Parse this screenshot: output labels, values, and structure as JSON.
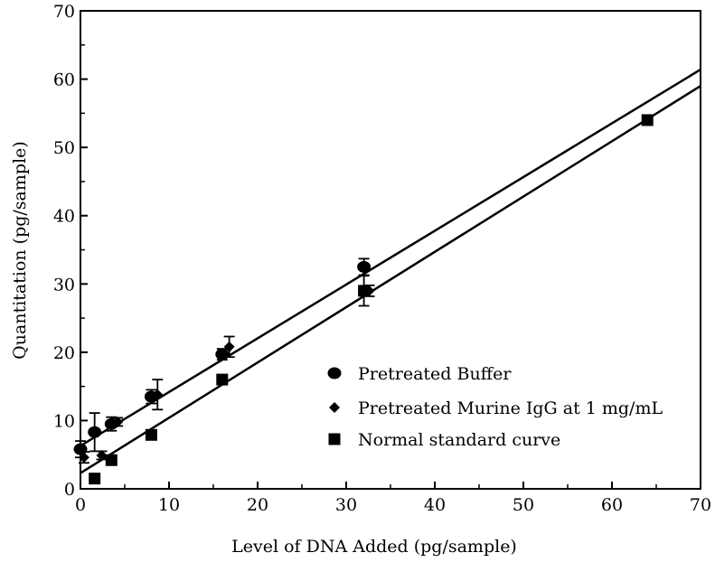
{
  "chart_data": {
    "type": "scatter",
    "title": "",
    "xlabel": "Level of DNA Added (pg/sample)",
    "ylabel": "Quantitation (pg/sample)",
    "xlim": [
      0,
      70
    ],
    "ylim": [
      0,
      70
    ],
    "xticks": [
      "0",
      "10",
      "20",
      "30",
      "40",
      "50",
      "60",
      "70"
    ],
    "yticks": [
      "0",
      "10",
      "20",
      "30",
      "40",
      "50",
      "60",
      "70"
    ],
    "grid": false,
    "legend_position": "lower-right",
    "series": [
      {
        "name": "Pretreated Buffer",
        "marker": "circle",
        "color": "#000000",
        "points": [
          {
            "x": 0,
            "y": 5.8,
            "err": 1.2
          },
          {
            "x": 1.6,
            "y": 8.3,
            "err": 2.8
          },
          {
            "x": 3.5,
            "y": 9.5,
            "err": 1.0
          },
          {
            "x": 8,
            "y": 13.5,
            "err": 1.0
          },
          {
            "x": 16,
            "y": 19.7,
            "err": 0.8
          },
          {
            "x": 32,
            "y": 32.5,
            "err": 1.2
          }
        ]
      },
      {
        "name": "Pretreated Murine IgG at 1 mg/mL",
        "marker": "diamond",
        "color": "#000000",
        "points": [
          {
            "x": 0.4,
            "y": 4.6,
            "err": 0.8
          },
          {
            "x": 2.4,
            "y": 4.9,
            "err": 0.6
          },
          {
            "x": 4.2,
            "y": 9.8,
            "err": 0.6
          },
          {
            "x": 8.7,
            "y": 13.8,
            "err": 2.2
          },
          {
            "x": 16.8,
            "y": 20.8,
            "err": 1.5
          },
          {
            "x": 32.6,
            "y": 29.0,
            "err": 0.8
          }
        ]
      },
      {
        "name": "Normal standard curve",
        "marker": "square",
        "color": "#000000",
        "points": [
          {
            "x": 1.6,
            "y": 1.5,
            "err": 0
          },
          {
            "x": 3.5,
            "y": 4.2,
            "err": 0
          },
          {
            "x": 8,
            "y": 7.9,
            "err": 0
          },
          {
            "x": 16,
            "y": 16.0,
            "err": 0
          },
          {
            "x": 32,
            "y": 29.0,
            "err": 2.2
          },
          {
            "x": 64,
            "y": 54.0,
            "err": 0
          }
        ]
      }
    ],
    "fit_lines": [
      {
        "x": [
          0,
          70
        ],
        "y": [
          6.3,
          61.4
        ]
      },
      {
        "x": [
          0,
          70
        ],
        "y": [
          2.3,
          59.0
        ]
      }
    ]
  }
}
